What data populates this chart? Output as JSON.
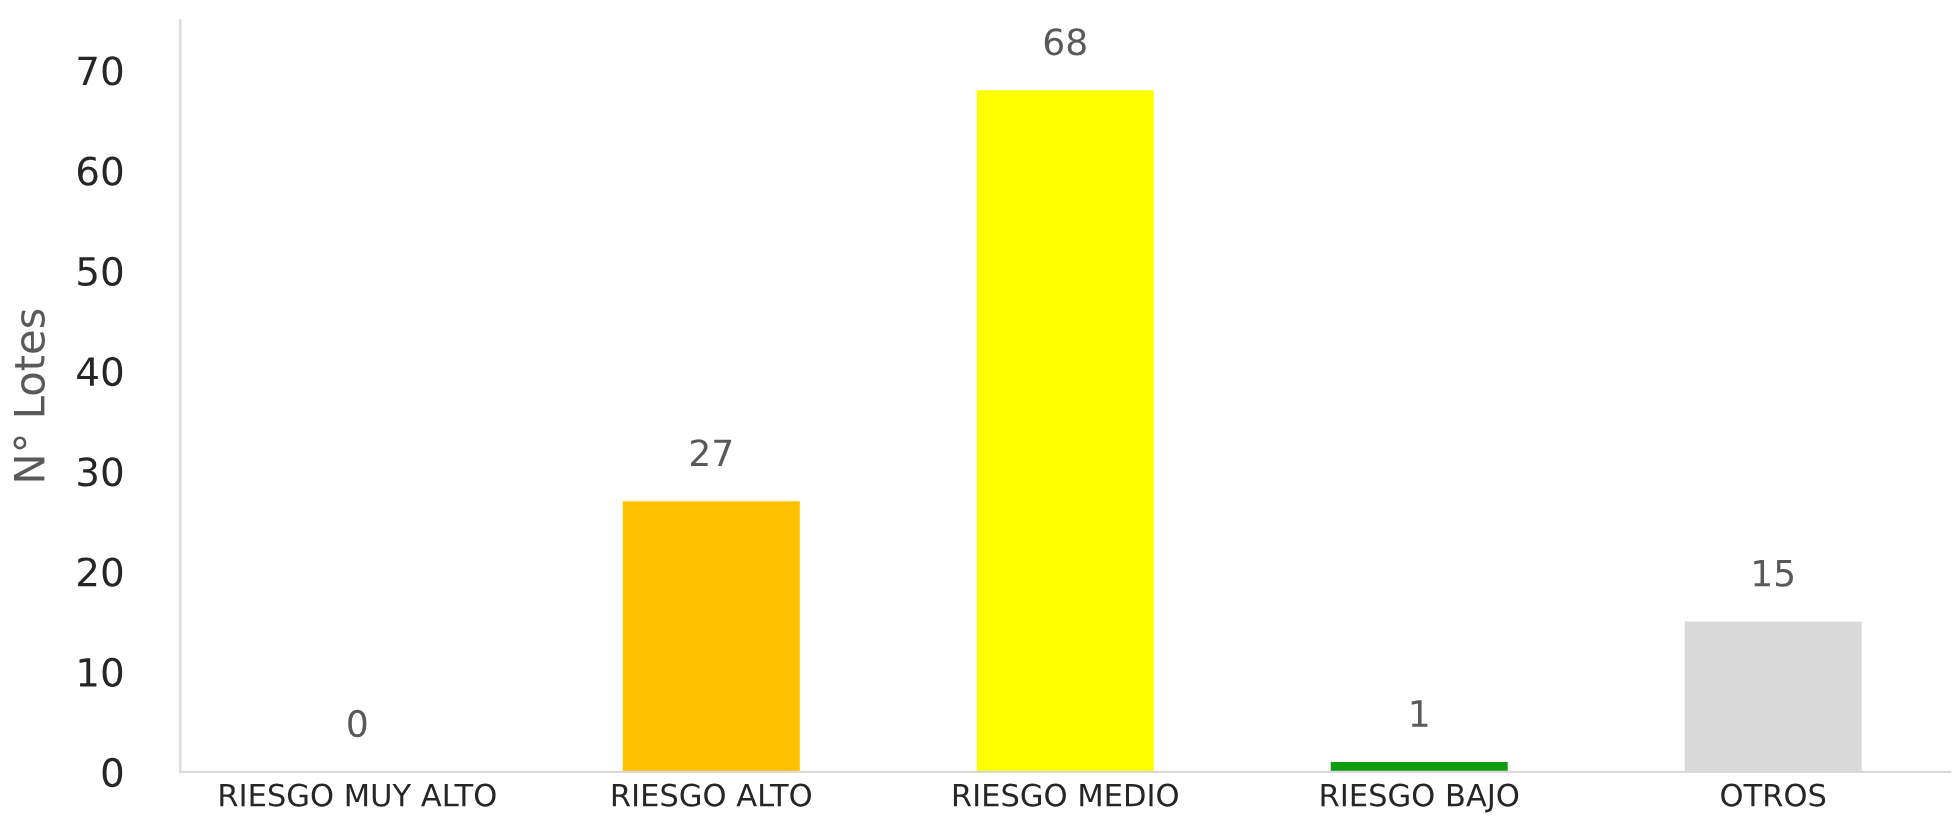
{
  "chart_data": {
    "type": "bar",
    "ylabel": "N° Lotes",
    "categories": [
      "RIESGO MUY ALTO",
      "RIESGO ALTO",
      "RIESGO MEDIO",
      "RIESGO BAJO",
      "OTROS"
    ],
    "values": [
      0,
      27,
      68,
      1,
      15
    ],
    "colors": [
      "#c00000",
      "#ffc000",
      "#ffff00",
      "#109c10",
      "#d9d9d9"
    ],
    "ylim": [
      0,
      75
    ],
    "yticks": [
      0,
      10,
      20,
      30,
      40,
      50,
      60,
      70
    ],
    "grid": false,
    "data_labels": true
  }
}
